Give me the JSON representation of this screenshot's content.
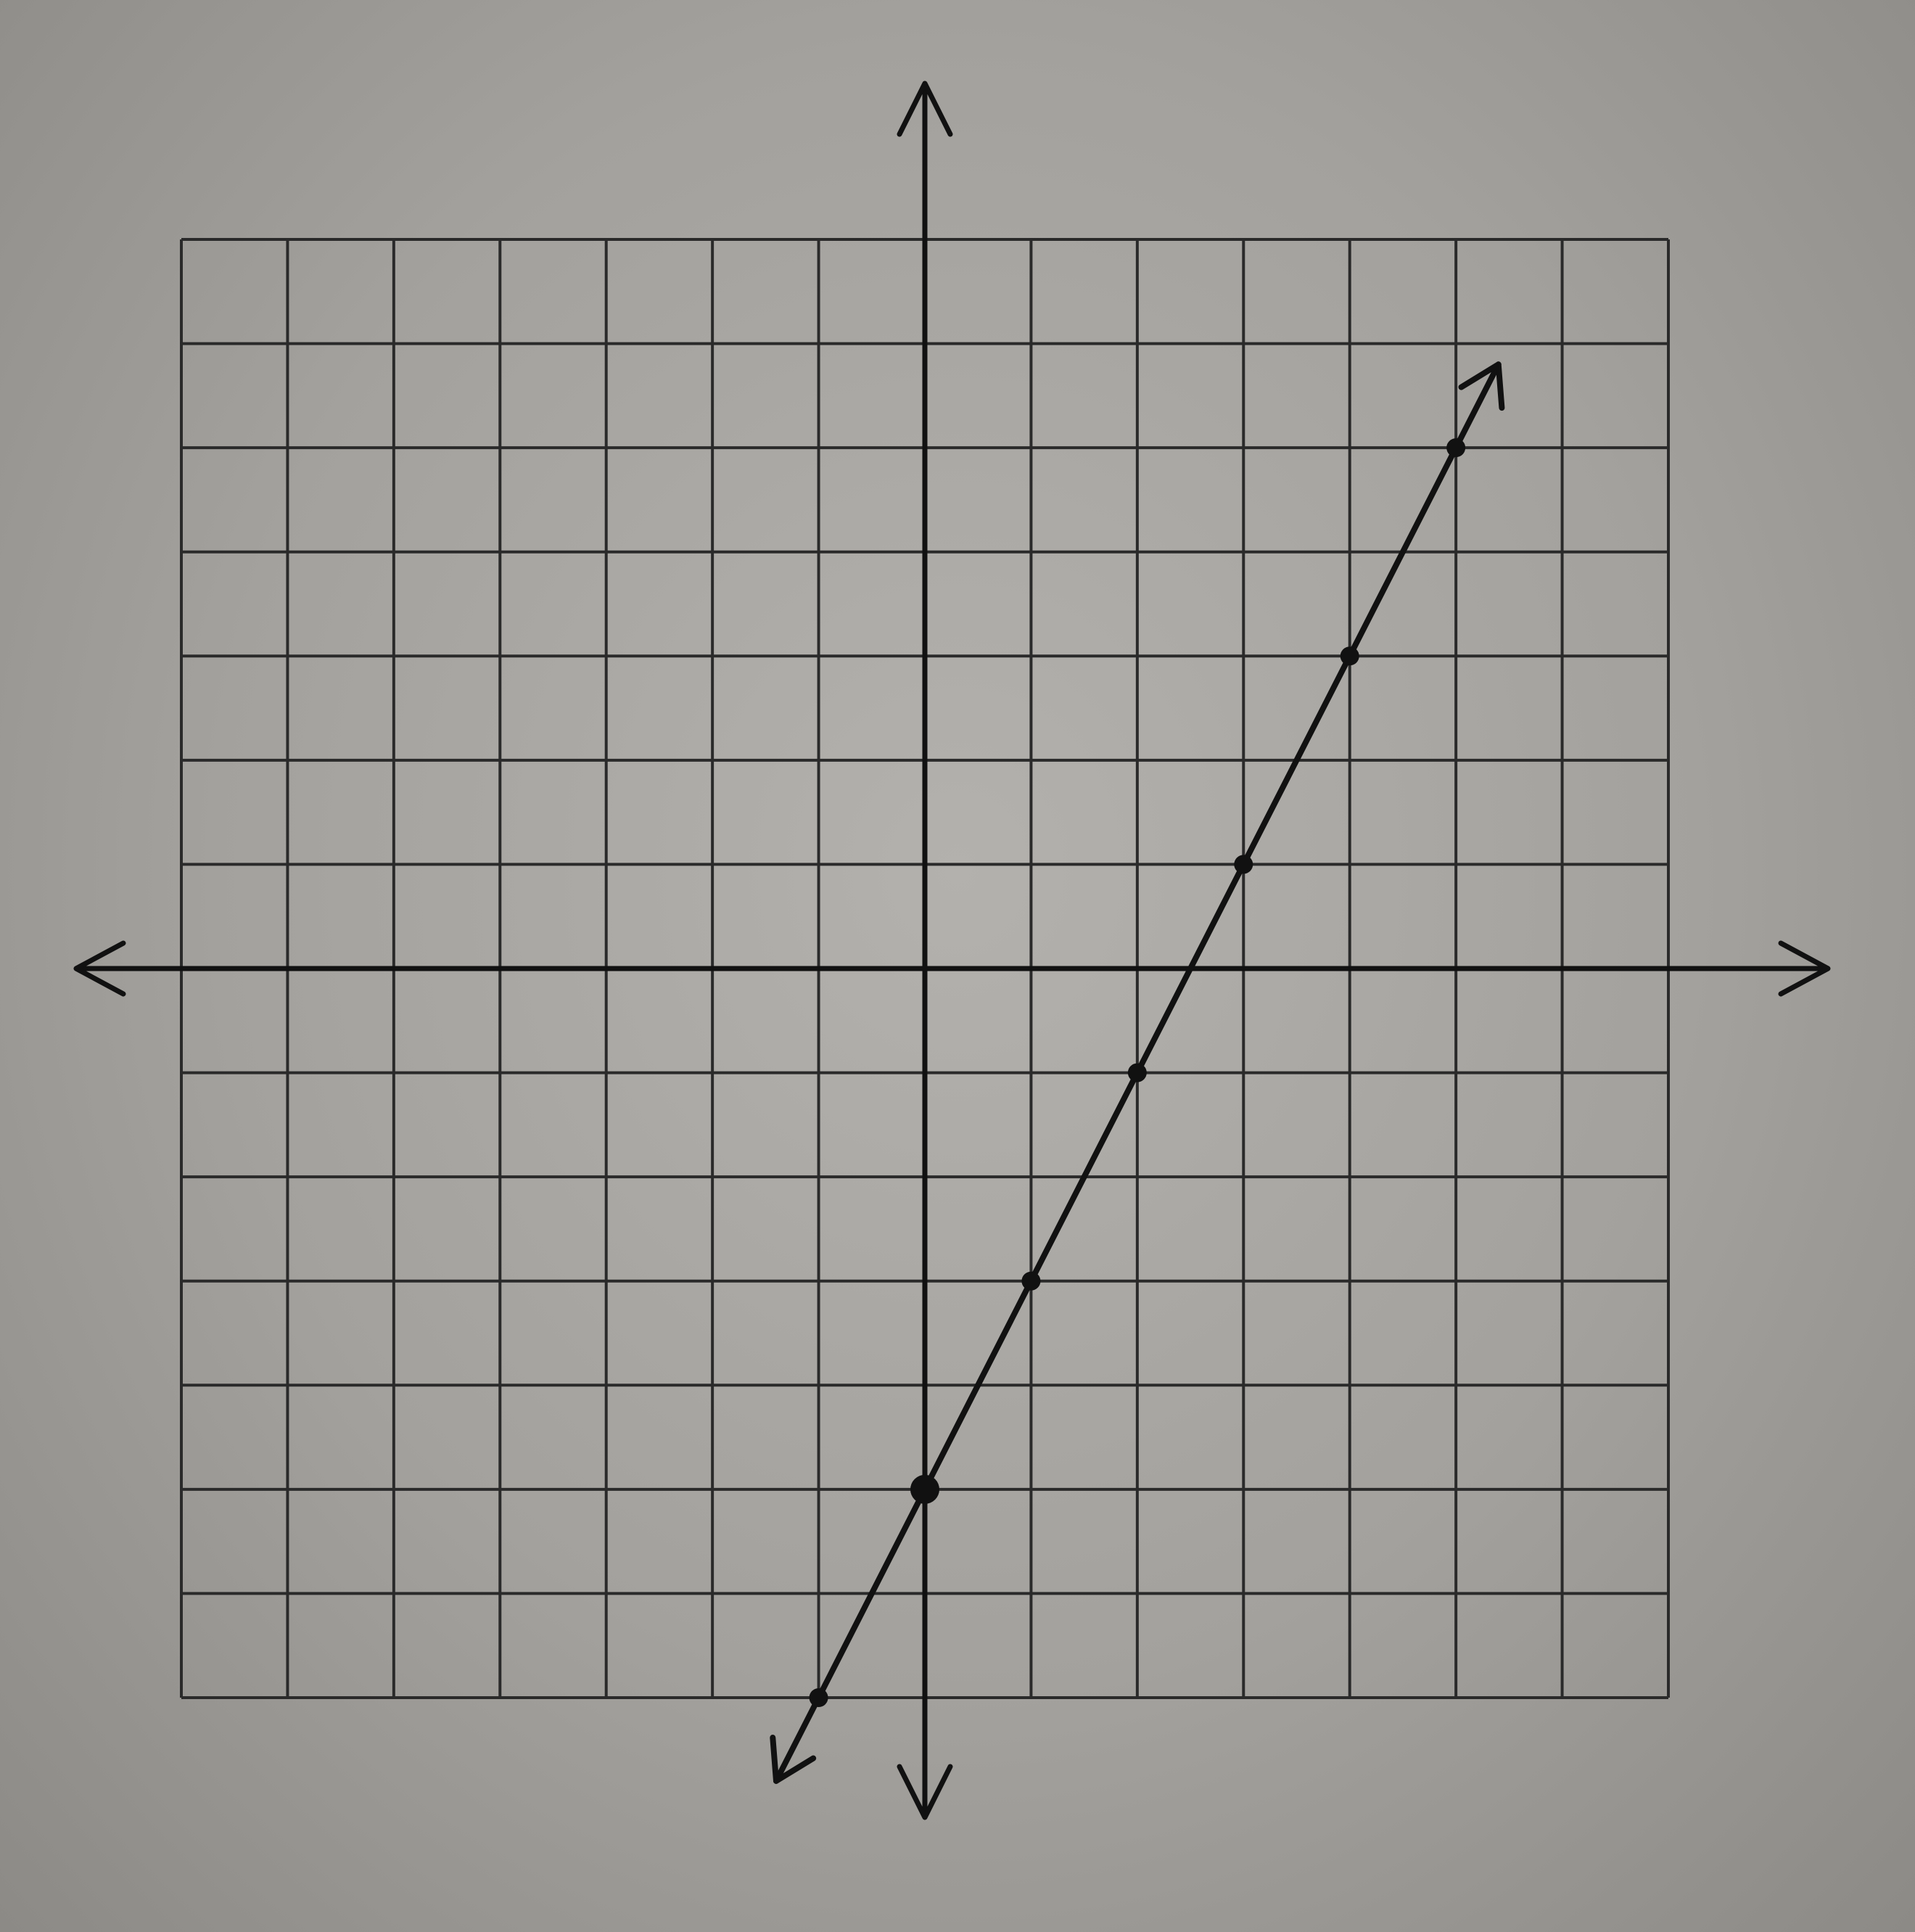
{
  "chart_data": {
    "type": "line",
    "title": "",
    "xlabel": "",
    "ylabel": "",
    "xlim": [
      -7,
      7
    ],
    "ylim": [
      -7,
      7
    ],
    "grid": true,
    "axes_arrows": true,
    "colors": {
      "line": "#111111",
      "grid": "#2a2a2a",
      "axis": "#111111"
    },
    "series": [
      {
        "points": [
          {
            "x": -1,
            "y": -7
          },
          {
            "x": 0,
            "y": -5
          },
          {
            "x": 1,
            "y": -3
          },
          {
            "x": 2,
            "y": -1
          },
          {
            "x": 3,
            "y": 1
          },
          {
            "x": 4,
            "y": 3
          },
          {
            "x": 5,
            "y": 5
          }
        ],
        "extends": true
      }
    ]
  }
}
